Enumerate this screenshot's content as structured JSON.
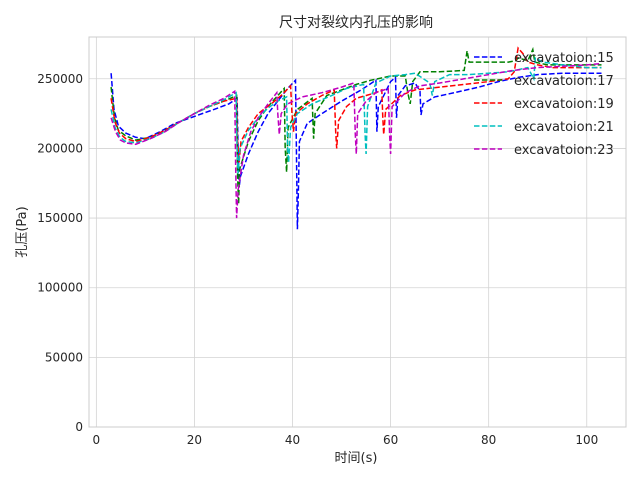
{
  "chart_data": {
    "type": "line",
    "title": "尺寸对裂纹内孔压的影响",
    "xlabel": "时间(s)",
    "ylabel": "孔压(Pa)",
    "xlim": [
      -1.5,
      108
    ],
    "ylim": [
      0,
      280000
    ],
    "xticks": [
      0,
      20,
      40,
      60,
      80,
      100
    ],
    "yticks": [
      0,
      50000,
      100000,
      150000,
      200000,
      250000
    ],
    "grid": true,
    "legend_position": "top-right",
    "line_style": "dashed",
    "series": [
      {
        "name": "excavatoion:15",
        "color": "#0000ff",
        "points": [
          [
            3,
            254000
          ],
          [
            3.6,
            228000
          ],
          [
            4.5,
            216000
          ],
          [
            6,
            211000
          ],
          [
            8,
            208000
          ],
          [
            10,
            207000
          ],
          [
            13,
            212000
          ],
          [
            16,
            218000
          ],
          [
            20,
            223000
          ],
          [
            24,
            228000
          ],
          [
            27,
            232000
          ],
          [
            28.7,
            236000
          ],
          [
            28.9,
            198000
          ],
          [
            29.1,
            172000
          ],
          [
            29.4,
            180000
          ],
          [
            31,
            196000
          ],
          [
            33,
            212000
          ],
          [
            35,
            225000
          ],
          [
            37,
            234000
          ],
          [
            39,
            243000
          ],
          [
            40.6,
            249000
          ],
          [
            40.8,
            200000
          ],
          [
            41.0,
            142000
          ],
          [
            41.2,
            170000
          ],
          [
            41.4,
            205000
          ],
          [
            43,
            218000
          ],
          [
            46,
            225000
          ],
          [
            50,
            234000
          ],
          [
            54,
            242000
          ],
          [
            57,
            249000
          ],
          [
            57.2,
            212000
          ],
          [
            57.5,
            230000
          ],
          [
            60,
            248000
          ],
          [
            61,
            251000
          ],
          [
            61.2,
            222000
          ],
          [
            61.5,
            238000
          ],
          [
            63,
            245000
          ],
          [
            65,
            247000
          ],
          [
            66,
            241000
          ],
          [
            66.2,
            224000
          ],
          [
            66.6,
            232000
          ],
          [
            69,
            237000
          ],
          [
            73,
            240000
          ],
          [
            78,
            244000
          ],
          [
            82,
            248000
          ],
          [
            86,
            251000
          ],
          [
            90,
            253000
          ],
          [
            95,
            254000
          ],
          [
            100,
            254000
          ],
          [
            103,
            254000
          ]
        ]
      },
      {
        "name": "excavatoion:17",
        "color": "#008000",
        "points": [
          [
            3,
            244000
          ],
          [
            3.7,
            222000
          ],
          [
            4.5,
            213000
          ],
          [
            6,
            209000
          ],
          [
            8,
            206000
          ],
          [
            11,
            208000
          ],
          [
            14,
            213000
          ],
          [
            17,
            219000
          ],
          [
            20,
            225000
          ],
          [
            23,
            230000
          ],
          [
            26,
            234000
          ],
          [
            28.6,
            238000
          ],
          [
            28.8,
            180000
          ],
          [
            29.0,
            160000
          ],
          [
            29.2,
            185000
          ],
          [
            31,
            205000
          ],
          [
            33,
            220000
          ],
          [
            35,
            230000
          ],
          [
            37,
            238000
          ],
          [
            38.3,
            243000
          ],
          [
            38.5,
            200000
          ],
          [
            38.8,
            183000
          ],
          [
            39.1,
            215000
          ],
          [
            41,
            228000
          ],
          [
            44,
            236000
          ],
          [
            44.3,
            207000
          ],
          [
            44.6,
            225000
          ],
          [
            47,
            238000
          ],
          [
            50,
            242000
          ],
          [
            53,
            246000
          ],
          [
            56,
            249000
          ],
          [
            60,
            252000
          ],
          [
            63,
            252000
          ],
          [
            63.5,
            240000
          ],
          [
            64,
            232000
          ],
          [
            64.5,
            248000
          ],
          [
            66,
            255000
          ],
          [
            70,
            255000
          ],
          [
            75,
            256000
          ],
          [
            75.6,
            270000
          ],
          [
            76,
            262000
          ],
          [
            80,
            262000
          ],
          [
            84,
            262000
          ],
          [
            85.5,
            263000
          ],
          [
            86,
            265000
          ],
          [
            88,
            263000
          ],
          [
            89,
            271000
          ],
          [
            89.4,
            262000
          ],
          [
            92,
            260000
          ],
          [
            97,
            260000
          ],
          [
            103,
            260000
          ]
        ]
      },
      {
        "name": "excavatoion:19",
        "color": "#ff0000",
        "points": [
          [
            3,
            236000
          ],
          [
            3.8,
            219000
          ],
          [
            4.7,
            211000
          ],
          [
            6,
            207000
          ],
          [
            8,
            205000
          ],
          [
            11,
            208000
          ],
          [
            14,
            213000
          ],
          [
            17,
            219000
          ],
          [
            20,
            225000
          ],
          [
            23,
            230000
          ],
          [
            26,
            234000
          ],
          [
            28.6,
            236000
          ],
          [
            28.8,
            205000
          ],
          [
            29.1,
            190000
          ],
          [
            29.5,
            205000
          ],
          [
            31,
            215000
          ],
          [
            33,
            225000
          ],
          [
            36,
            233000
          ],
          [
            38,
            239000
          ],
          [
            39.6,
            245000
          ],
          [
            39.9,
            225000
          ],
          [
            40.2,
            212000
          ],
          [
            40.6,
            225000
          ],
          [
            43,
            232000
          ],
          [
            46,
            238000
          ],
          [
            48.5,
            242000
          ],
          [
            48.8,
            212000
          ],
          [
            49,
            200000
          ],
          [
            49.4,
            220000
          ],
          [
            51,
            230000
          ],
          [
            53,
            236000
          ],
          [
            55,
            238000
          ],
          [
            57,
            240000
          ],
          [
            58.2,
            242000
          ],
          [
            58.4,
            222000
          ],
          [
            58.6,
            210000
          ],
          [
            59,
            228000
          ],
          [
            62,
            238000
          ],
          [
            65,
            242000
          ],
          [
            70,
            244000
          ],
          [
            75,
            246000
          ],
          [
            80,
            248000
          ],
          [
            84,
            250000
          ],
          [
            85.2,
            255000
          ],
          [
            86,
            272000
          ],
          [
            87,
            268000
          ],
          [
            88,
            262000
          ],
          [
            90,
            260000
          ],
          [
            93,
            258000
          ],
          [
            97,
            258000
          ],
          [
            103,
            258000
          ]
        ]
      },
      {
        "name": "excavatoion:21",
        "color": "#00bfbf",
        "points": [
          [
            3,
            228000
          ],
          [
            3.8,
            215000
          ],
          [
            4.8,
            208000
          ],
          [
            6,
            205000
          ],
          [
            8,
            204000
          ],
          [
            11,
            207000
          ],
          [
            14,
            212000
          ],
          [
            17,
            219000
          ],
          [
            20,
            225000
          ],
          [
            23,
            230000
          ],
          [
            26,
            235000
          ],
          [
            28.5,
            240000
          ],
          [
            28.7,
            200000
          ],
          [
            28.9,
            182000
          ],
          [
            29.3,
            200000
          ],
          [
            31,
            213000
          ],
          [
            33,
            222000
          ],
          [
            35,
            229000
          ],
          [
            37,
            234000
          ],
          [
            38.8,
            237000
          ],
          [
            39,
            200000
          ],
          [
            39.2,
            190000
          ],
          [
            39.6,
            215000
          ],
          [
            41,
            225000
          ],
          [
            44,
            232000
          ],
          [
            48,
            238000
          ],
          [
            51,
            243000
          ],
          [
            54.5,
            246000
          ],
          [
            54.8,
            210000
          ],
          [
            55,
            196000
          ],
          [
            55.3,
            230000
          ],
          [
            57,
            247000
          ],
          [
            60,
            252000
          ],
          [
            63,
            253000
          ],
          [
            65,
            254000
          ],
          [
            68,
            247000
          ],
          [
            68.5,
            238000
          ],
          [
            69,
            248000
          ],
          [
            72,
            253000
          ],
          [
            76,
            253000
          ],
          [
            80,
            254000
          ],
          [
            84,
            255000
          ],
          [
            88,
            258000
          ],
          [
            89.2,
            250000
          ],
          [
            89.5,
            265000
          ],
          [
            91,
            262000
          ],
          [
            95,
            260000
          ],
          [
            100,
            258000
          ],
          [
            103,
            258000
          ]
        ]
      },
      {
        "name": "excavatoion:23",
        "color": "#bf00bf",
        "points": [
          [
            3,
            222000
          ],
          [
            3.9,
            212000
          ],
          [
            4.9,
            206000
          ],
          [
            6,
            204000
          ],
          [
            8,
            203000
          ],
          [
            11,
            207000
          ],
          [
            14,
            212000
          ],
          [
            17,
            219000
          ],
          [
            20,
            225000
          ],
          [
            23,
            231000
          ],
          [
            26,
            236000
          ],
          [
            28.2,
            241000
          ],
          [
            28.4,
            190000
          ],
          [
            28.6,
            150000
          ],
          [
            28.9,
            170000
          ],
          [
            30,
            195000
          ],
          [
            31.5,
            212000
          ],
          [
            33,
            222000
          ],
          [
            35,
            232000
          ],
          [
            36.8,
            240000
          ],
          [
            37,
            225000
          ],
          [
            37.3,
            210000
          ],
          [
            37.7,
            225000
          ],
          [
            39,
            232000
          ],
          [
            42,
            237000
          ],
          [
            46,
            240000
          ],
          [
            50,
            244000
          ],
          [
            52.5,
            247000
          ],
          [
            52.8,
            210000
          ],
          [
            53,
            196000
          ],
          [
            53.3,
            225000
          ],
          [
            55,
            234000
          ],
          [
            57,
            240000
          ],
          [
            59.5,
            243000
          ],
          [
            59.8,
            210000
          ],
          [
            60,
            196000
          ],
          [
            60.3,
            230000
          ],
          [
            63,
            240000
          ],
          [
            66,
            245000
          ],
          [
            70,
            247000
          ],
          [
            75,
            250000
          ],
          [
            80,
            253000
          ],
          [
            85,
            256000
          ],
          [
            90,
            258000
          ],
          [
            95,
            259000
          ],
          [
            100,
            260000
          ],
          [
            103,
            261000
          ]
        ]
      }
    ]
  }
}
